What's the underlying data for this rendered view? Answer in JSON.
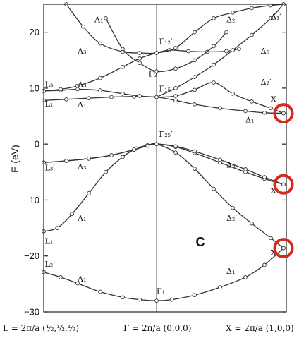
{
  "chart_data": {
    "type": "line",
    "ylabel": "E (eV)",
    "ylim": [
      -30,
      25
    ],
    "yticks": [
      -30,
      -20,
      -10,
      0,
      10,
      20
    ],
    "ytick_labels": [
      "−30",
      "−20",
      "−10",
      "0",
      "10",
      "20"
    ],
    "x_points": [
      {
        "id": "L",
        "label": "L = 2π/a (½,½,½)"
      },
      {
        "id": "Gamma",
        "label": "Γ = 2π/a (0,0,0)"
      },
      {
        "id": "X",
        "label": "X = 2π/a (1,0,0)"
      }
    ],
    "panel_letter": "C",
    "bands": [
      {
        "x": [
          0,
          0.15,
          0.3,
          0.5,
          0.7,
          0.85,
          1.0,
          1.12,
          1.3,
          1.5,
          1.7,
          1.85,
          2.0
        ],
        "y": [
          -22.9,
          -23.8,
          -24.9,
          -26.4,
          -27.4,
          -27.8,
          -28.0,
          -27.8,
          -27.0,
          -25.6,
          -23.8,
          -21.6,
          -18.6
        ]
      },
      {
        "x": [
          0,
          0.12,
          0.25,
          0.4,
          0.55,
          0.7,
          0.82,
          0.92,
          1.0,
          1.15,
          1.3,
          1.45,
          1.6,
          1.75,
          1.9,
          2.0
        ],
        "y": [
          -15.6,
          -15.0,
          -12.5,
          -8.8,
          -5.0,
          -2.3,
          -0.8,
          -0.2,
          0.0,
          -1.5,
          -4.4,
          -8.0,
          -11.4,
          -14.2,
          -16.8,
          -18.6
        ]
      },
      {
        "x": [
          0,
          0.2,
          0.4,
          0.6,
          0.8,
          0.92,
          1.0,
          1.15,
          1.3,
          1.5,
          1.7,
          1.85,
          2.0
        ],
        "y": [
          -3.3,
          -3.0,
          -2.6,
          -2.0,
          -1.0,
          -0.3,
          0.0,
          -0.5,
          -1.6,
          -3.3,
          -5.0,
          -6.2,
          -7.2
        ]
      },
      {
        "x": [
          0,
          0.2,
          0.4,
          0.6,
          0.8,
          0.92,
          1.0,
          1.15,
          1.3,
          1.5,
          1.7,
          1.85,
          2.0
        ],
        "y": [
          -3.3,
          -3.0,
          -2.6,
          -2.0,
          -1.0,
          -0.3,
          0.0,
          -0.4,
          -1.3,
          -2.8,
          -4.5,
          -5.9,
          -7.2
        ]
      },
      {
        "x": [
          0,
          0.2,
          0.4,
          0.6,
          0.8,
          1.0,
          1.15,
          1.3,
          1.5,
          1.7,
          1.85,
          2.0
        ],
        "y": [
          7.8,
          8.0,
          8.2,
          8.4,
          8.5,
          8.4,
          7.8,
          7.1,
          6.4,
          5.9,
          5.6,
          5.5
        ]
      },
      {
        "x": [
          0,
          0.15,
          0.3,
          0.5,
          0.7,
          0.85,
          1.0,
          1.15,
          1.3,
          1.45,
          1.6,
          1.75,
          1.9,
          2.0
        ],
        "y": [
          9.5,
          9.6,
          9.8,
          9.6,
          9.0,
          8.6,
          8.4,
          8.6,
          9.7,
          11.0,
          9.0,
          7.6,
          6.4,
          5.5
        ]
      },
      {
        "x": [
          0,
          0.15,
          0.3,
          0.5,
          0.7,
          0.85,
          1.0,
          1.1,
          1.25,
          1.4,
          1.55,
          1.65
        ],
        "y": [
          9.5,
          9.8,
          10.4,
          11.8,
          13.8,
          15.3,
          16.3,
          16.8,
          16.6,
          16.5,
          16.6,
          17.0
        ]
      },
      {
        "x": [
          0.2,
          0.35,
          0.5,
          0.7,
          0.85,
          1.0,
          1.15,
          1.3,
          1.45,
          1.6,
          1.75,
          1.9,
          2.0
        ],
        "y": [
          25.0,
          21.0,
          18.0,
          16.5,
          16.3,
          16.3,
          17.2,
          20.0,
          22.5,
          23.5,
          24.3,
          24.8,
          25.0
        ]
      },
      {
        "x": [
          0.55,
          0.7,
          0.85,
          1.0,
          1.15,
          1.3,
          1.45,
          1.55
        ],
        "y": [
          22.5,
          17.0,
          14.5,
          13.0,
          13.5,
          15.0,
          17.5,
          20.0
        ]
      },
      {
        "x": [
          1.0,
          1.15,
          1.3,
          1.45,
          1.6,
          1.75,
          1.9,
          2.0
        ],
        "y": [
          8.4,
          10.0,
          12.0,
          14.2,
          16.8,
          19.5,
          22.5,
          25.0
        ]
      }
    ],
    "band_labels": [
      {
        "text": "Λ₁",
        "x": 0.45,
        "y": 21.8
      },
      {
        "text": "Δ₂′",
        "x": 1.55,
        "y": 21.8
      },
      {
        "text": "Δ₁′",
        "x": 1.9,
        "y": 22.3
      },
      {
        "text": "Λ₃",
        "x": 0.3,
        "y": 16.2
      },
      {
        "text": "Γ₁₂′",
        "x": 1.02,
        "y": 17.9
      },
      {
        "text": "Δ₅",
        "x": 1.82,
        "y": 16.2
      },
      {
        "text": "Γ₂′",
        "x": 0.93,
        "y": 12.1
      },
      {
        "text": "L₃",
        "x": 0.01,
        "y": 10.2
      },
      {
        "text": "Λ₃",
        "x": 0.3,
        "y": 10.2
      },
      {
        "text": "Γ₁₅",
        "x": 1.02,
        "y": 9.4
      },
      {
        "text": "Δ₂′",
        "x": 1.82,
        "y": 10.6
      },
      {
        "text": "X",
        "x": 1.9,
        "y": 7.5
      },
      {
        "text": "L₁",
        "x": 0.01,
        "y": 6.7
      },
      {
        "text": "Λ₁",
        "x": 0.3,
        "y": 6.6
      },
      {
        "text": "Δ₁",
        "x": 1.7,
        "y": 3.9
      },
      {
        "text": "Γ₂₅′",
        "x": 1.02,
        "y": 1.3
      },
      {
        "text": "L₃′",
        "x": 0.01,
        "y": -4.7
      },
      {
        "text": "Λ₃",
        "x": 0.3,
        "y": -4.5
      },
      {
        "text": "Δ₅",
        "x": 1.55,
        "y": -4.2
      },
      {
        "text": "X",
        "x": 1.9,
        "y": -8.8
      },
      {
        "text": "Λ₁",
        "x": 0.3,
        "y": -13.7
      },
      {
        "text": "Δ₂′",
        "x": 1.55,
        "y": -13.7
      },
      {
        "text": "L₁",
        "x": 0.01,
        "y": -17.8
      },
      {
        "text": "X",
        "x": 1.9,
        "y": -19.9
      },
      {
        "text": "L₂′",
        "x": 0.01,
        "y": -21.9
      },
      {
        "text": "Λ₁",
        "x": 0.3,
        "y": -24.6
      },
      {
        "text": "Δ₁",
        "x": 1.55,
        "y": -23.2
      },
      {
        "text": "Γ₁",
        "x": 1.0,
        "y": -26.8
      }
    ],
    "highlight_circles": [
      {
        "x": 2.0,
        "y": 5.5
      },
      {
        "x": 2.0,
        "y": -7.2
      },
      {
        "x": 2.0,
        "y": -18.6
      }
    ],
    "colors": {
      "line": "#333333",
      "marker_fill": "#ffffff",
      "circle": "#d62a1e",
      "axis": "#222222"
    }
  }
}
